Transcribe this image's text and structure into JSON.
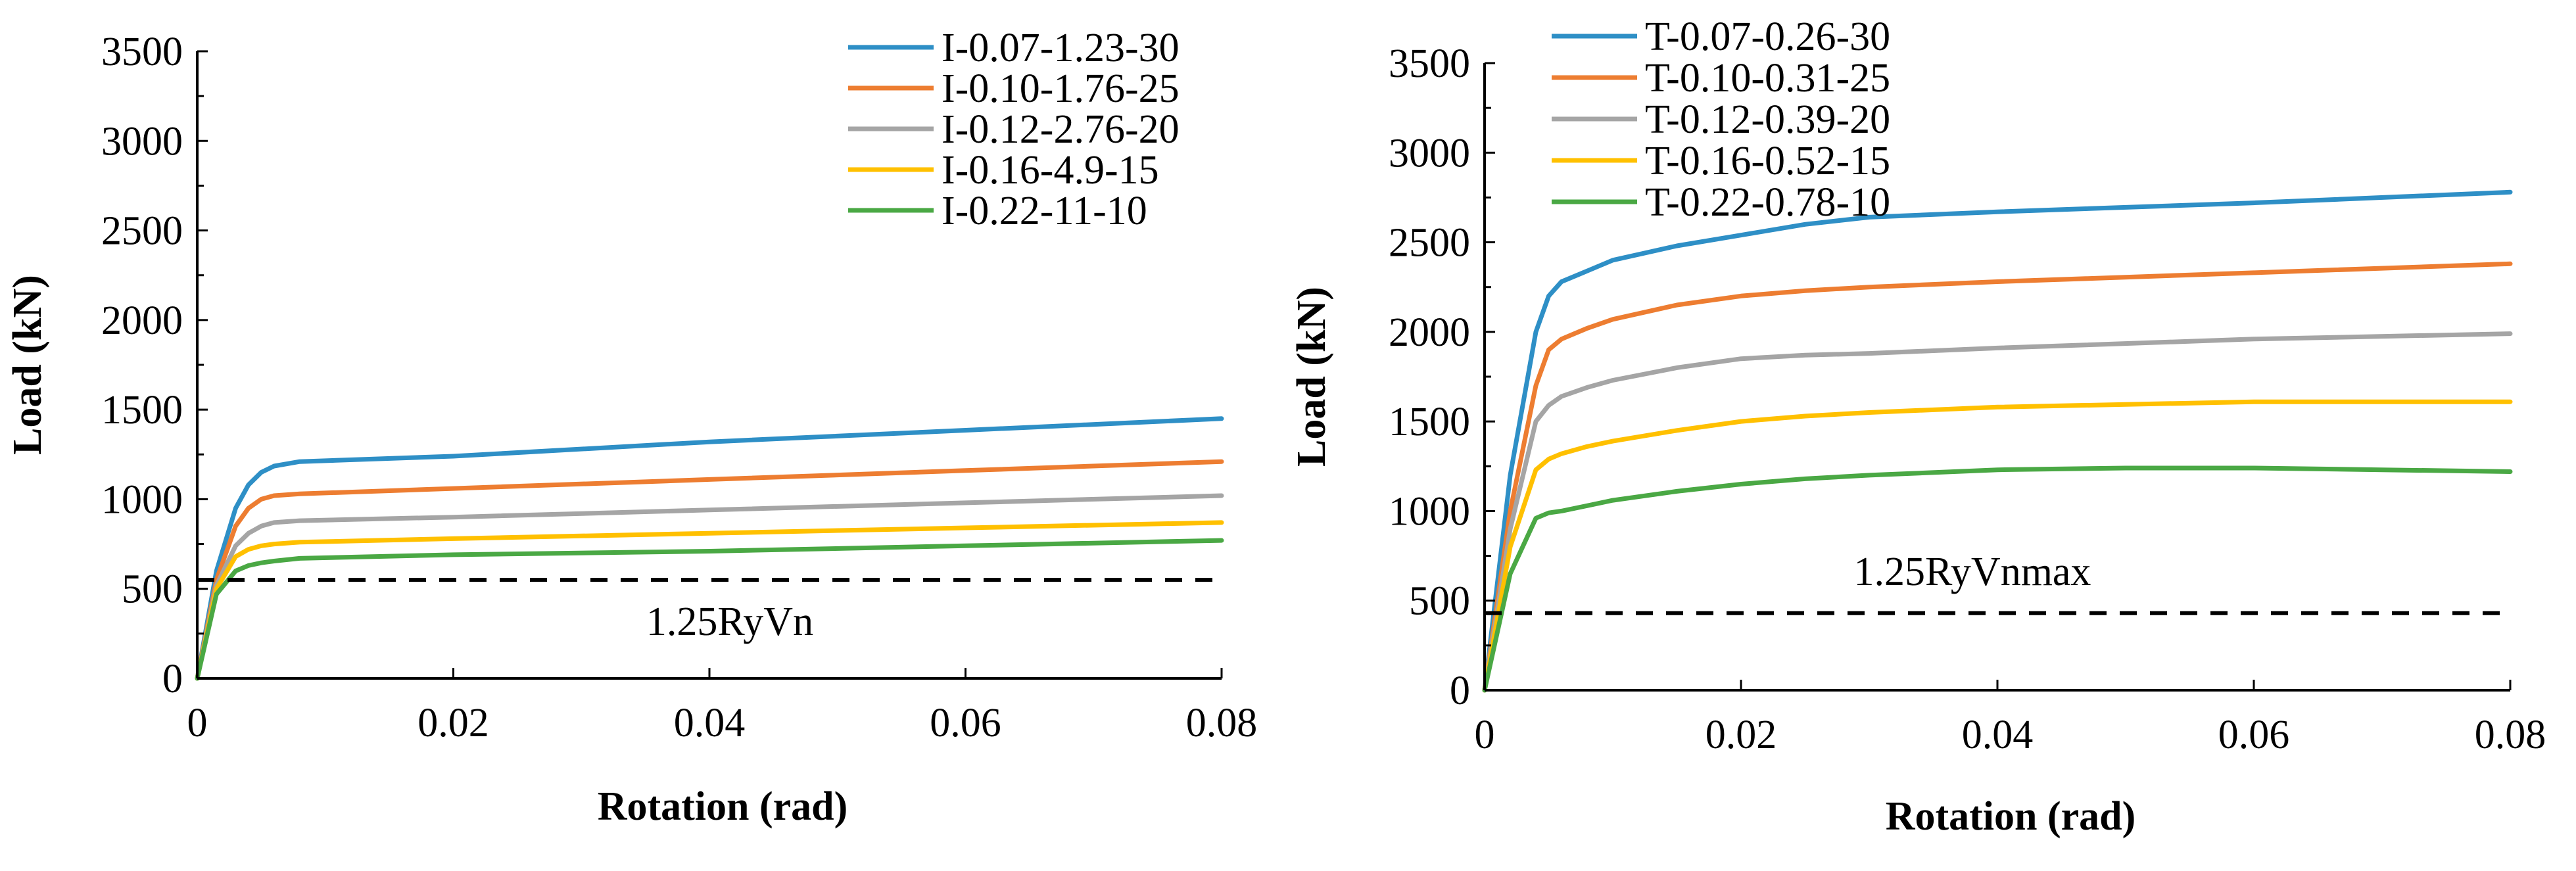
{
  "chart_data": [
    {
      "type": "line",
      "title": "",
      "xlabel": "Rotation (rad)",
      "ylabel": "Load (kN)",
      "xlim": [
        0,
        0.08
      ],
      "ylim": [
        0,
        3500
      ],
      "xticks": [
        0,
        0.02,
        0.04,
        0.06,
        0.08
      ],
      "xtick_labels": [
        "0",
        "0.02",
        "0.04",
        "0.06",
        "0.08"
      ],
      "yticks": [
        0,
        500,
        1000,
        1500,
        2000,
        2500,
        3000,
        3500
      ],
      "ytick_labels": [
        "0",
        "500",
        "1000",
        "1500",
        "2000",
        "2500",
        "3000",
        "3500"
      ],
      "legend": "top-right",
      "series": [
        {
          "name": "I-0.07-1.23-30",
          "color": "#2e8fc6",
          "x": [
            0,
            0.0015,
            0.003,
            0.004,
            0.005,
            0.006,
            0.008,
            0.02,
            0.04,
            0.06,
            0.08
          ],
          "y": [
            0,
            600,
            950,
            1080,
            1150,
            1185,
            1210,
            1240,
            1320,
            1385,
            1450
          ]
        },
        {
          "name": "I-0.10-1.76-25",
          "color": "#ed7d31",
          "x": [
            0,
            0.0015,
            0.003,
            0.004,
            0.005,
            0.006,
            0.008,
            0.02,
            0.04,
            0.06,
            0.08
          ],
          "y": [
            0,
            550,
            850,
            950,
            1000,
            1020,
            1030,
            1060,
            1110,
            1160,
            1210
          ]
        },
        {
          "name": "I-0.12-2.76-20",
          "color": "#a5a5a5",
          "x": [
            0,
            0.0015,
            0.003,
            0.004,
            0.005,
            0.006,
            0.008,
            0.02,
            0.04,
            0.06,
            0.08
          ],
          "y": [
            0,
            520,
            740,
            810,
            850,
            870,
            880,
            900,
            940,
            980,
            1020
          ]
        },
        {
          "name": "I-0.16-4.9-15",
          "color": "#ffc000",
          "x": [
            0,
            0.0015,
            0.003,
            0.004,
            0.005,
            0.006,
            0.008,
            0.02,
            0.04,
            0.06,
            0.08
          ],
          "y": [
            0,
            500,
            680,
            720,
            740,
            750,
            760,
            780,
            810,
            840,
            870
          ]
        },
        {
          "name": "I-0.22-11-10",
          "color": "#4aa844",
          "x": [
            0,
            0.0015,
            0.003,
            0.004,
            0.005,
            0.006,
            0.008,
            0.02,
            0.04,
            0.06,
            0.08
          ],
          "y": [
            0,
            470,
            600,
            630,
            645,
            655,
            670,
            690,
            710,
            740,
            770
          ]
        }
      ],
      "reference_line": {
        "label": "1.25RyVn",
        "value": 550,
        "style": "dashed",
        "color": "#000000"
      }
    },
    {
      "type": "line",
      "title": "",
      "xlabel": "Rotation (rad)",
      "ylabel": "Load (kN)",
      "xlim": [
        0,
        0.08
      ],
      "ylim": [
        0,
        3500
      ],
      "xticks": [
        0,
        0.02,
        0.04,
        0.06,
        0.08
      ],
      "xtick_labels": [
        "0",
        "0.02",
        "0.04",
        "0.06",
        "0.08"
      ],
      "yticks": [
        0,
        500,
        1000,
        1500,
        2000,
        2500,
        3000,
        3500
      ],
      "ytick_labels": [
        "0",
        "500",
        "1000",
        "1500",
        "2000",
        "2500",
        "3000",
        "3500"
      ],
      "legend": "top-left",
      "series": [
        {
          "name": "T-0.07-0.26-30",
          "color": "#2e8fc6",
          "x": [
            0,
            0.002,
            0.004,
            0.005,
            0.006,
            0.008,
            0.01,
            0.015,
            0.02,
            0.025,
            0.03,
            0.04,
            0.06,
            0.08
          ],
          "y": [
            0,
            1200,
            2000,
            2200,
            2280,
            2340,
            2400,
            2480,
            2540,
            2600,
            2640,
            2670,
            2720,
            2780
          ]
        },
        {
          "name": "T-0.10-0.31-25",
          "color": "#ed7d31",
          "x": [
            0,
            0.002,
            0.004,
            0.005,
            0.006,
            0.008,
            0.01,
            0.015,
            0.02,
            0.025,
            0.03,
            0.04,
            0.06,
            0.08
          ],
          "y": [
            0,
            1000,
            1700,
            1900,
            1960,
            2020,
            2070,
            2150,
            2200,
            2230,
            2250,
            2280,
            2330,
            2380
          ]
        },
        {
          "name": "T-0.12-0.39-20",
          "color": "#a5a5a5",
          "x": [
            0,
            0.002,
            0.004,
            0.005,
            0.006,
            0.008,
            0.01,
            0.015,
            0.02,
            0.025,
            0.03,
            0.04,
            0.06,
            0.08
          ],
          "y": [
            0,
            900,
            1500,
            1590,
            1640,
            1690,
            1730,
            1800,
            1850,
            1870,
            1880,
            1910,
            1960,
            1990
          ]
        },
        {
          "name": "T-0.16-0.52-15",
          "color": "#ffc000",
          "x": [
            0,
            0.002,
            0.004,
            0.005,
            0.006,
            0.008,
            0.01,
            0.015,
            0.02,
            0.025,
            0.03,
            0.04,
            0.06,
            0.08
          ],
          "y": [
            0,
            800,
            1230,
            1290,
            1320,
            1360,
            1390,
            1450,
            1500,
            1530,
            1550,
            1580,
            1610,
            1610
          ]
        },
        {
          "name": "T-0.22-0.78-10",
          "color": "#4aa844",
          "x": [
            0,
            0.002,
            0.004,
            0.005,
            0.006,
            0.008,
            0.01,
            0.015,
            0.02,
            0.025,
            0.03,
            0.04,
            0.05,
            0.06,
            0.07,
            0.08
          ],
          "y": [
            0,
            650,
            960,
            990,
            1000,
            1030,
            1060,
            1110,
            1150,
            1180,
            1200,
            1230,
            1240,
            1240,
            1230,
            1220
          ]
        }
      ],
      "reference_line": {
        "label": "1.25RyVnmax",
        "value": 430,
        "style": "dashed",
        "color": "#000000"
      }
    }
  ]
}
